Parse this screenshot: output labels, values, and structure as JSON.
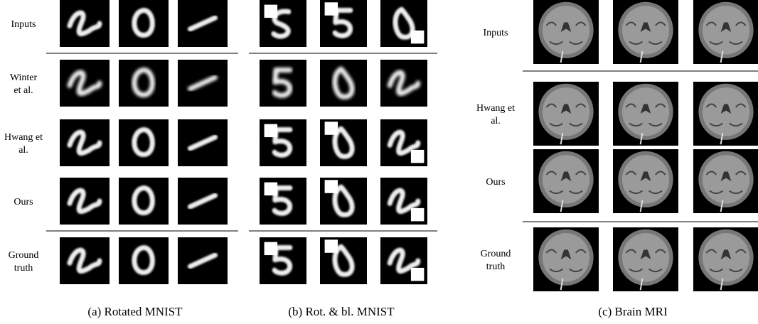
{
  "panels": [
    {
      "caption": "(a) Rotated MNIST",
      "row_labels": [
        "Inputs",
        "Winter et al.",
        "Hwang et al.",
        "Ours",
        "Ground truth"
      ]
    },
    {
      "caption": "(b) Rot. & bl. MNIST"
    },
    {
      "caption": "(c) Brain MRI",
      "row_labels": [
        "Inputs",
        "Hwang et al.",
        "Ours",
        "Ground truth"
      ]
    }
  ]
}
